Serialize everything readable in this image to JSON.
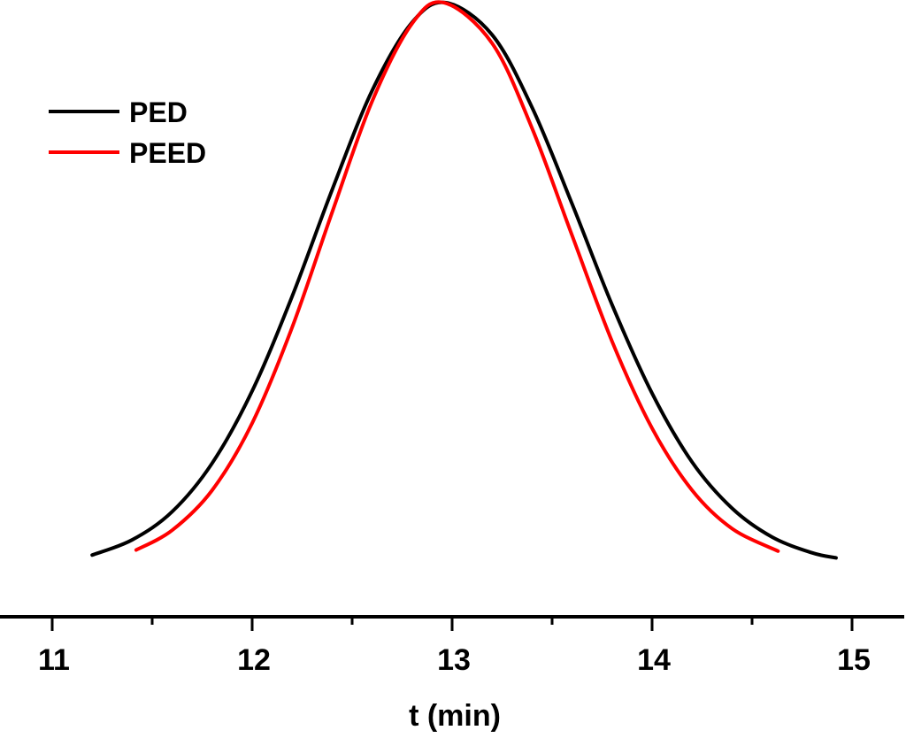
{
  "chart_data": {
    "type": "line",
    "title": "",
    "xlabel": "t (min)",
    "ylabel": "",
    "xlim": [
      10.75,
      15.3
    ],
    "ylim": [
      0,
      1
    ],
    "x_ticks": [
      "11",
      "12",
      "13",
      "14",
      "15"
    ],
    "x_tick_values": [
      11,
      12,
      13,
      14,
      15
    ],
    "x_minor_ticks": [
      11.5,
      12.5,
      13.5,
      14.5
    ],
    "y_axis_visible": false,
    "grid": false,
    "legend_position": "top-left",
    "series": [
      {
        "name": "PED",
        "color": "#000000",
        "x": [
          11.2,
          11.4,
          11.6,
          11.8,
          12.0,
          12.2,
          12.4,
          12.6,
          12.8,
          12.97,
          13.2,
          13.4,
          13.6,
          13.8,
          14.0,
          14.2,
          14.4,
          14.6,
          14.8,
          14.92
        ],
        "y": [
          0.02,
          0.047,
          0.097,
          0.183,
          0.311,
          0.479,
          0.668,
          0.844,
          0.965,
          1.0,
          0.943,
          0.814,
          0.643,
          0.464,
          0.307,
          0.185,
          0.103,
          0.052,
          0.024,
          0.015
        ]
      },
      {
        "name": "PEED",
        "color": "#ff0000",
        "x": [
          11.42,
          11.6,
          11.8,
          12.0,
          12.2,
          12.4,
          12.6,
          12.8,
          12.96,
          13.2,
          13.4,
          13.6,
          13.8,
          14.0,
          14.2,
          14.4,
          14.63
        ],
        "y": [
          0.029,
          0.064,
          0.135,
          0.254,
          0.424,
          0.628,
          0.825,
          0.963,
          1.0,
          0.928,
          0.777,
          0.587,
          0.399,
          0.245,
          0.135,
          0.067,
          0.027
        ]
      }
    ]
  }
}
